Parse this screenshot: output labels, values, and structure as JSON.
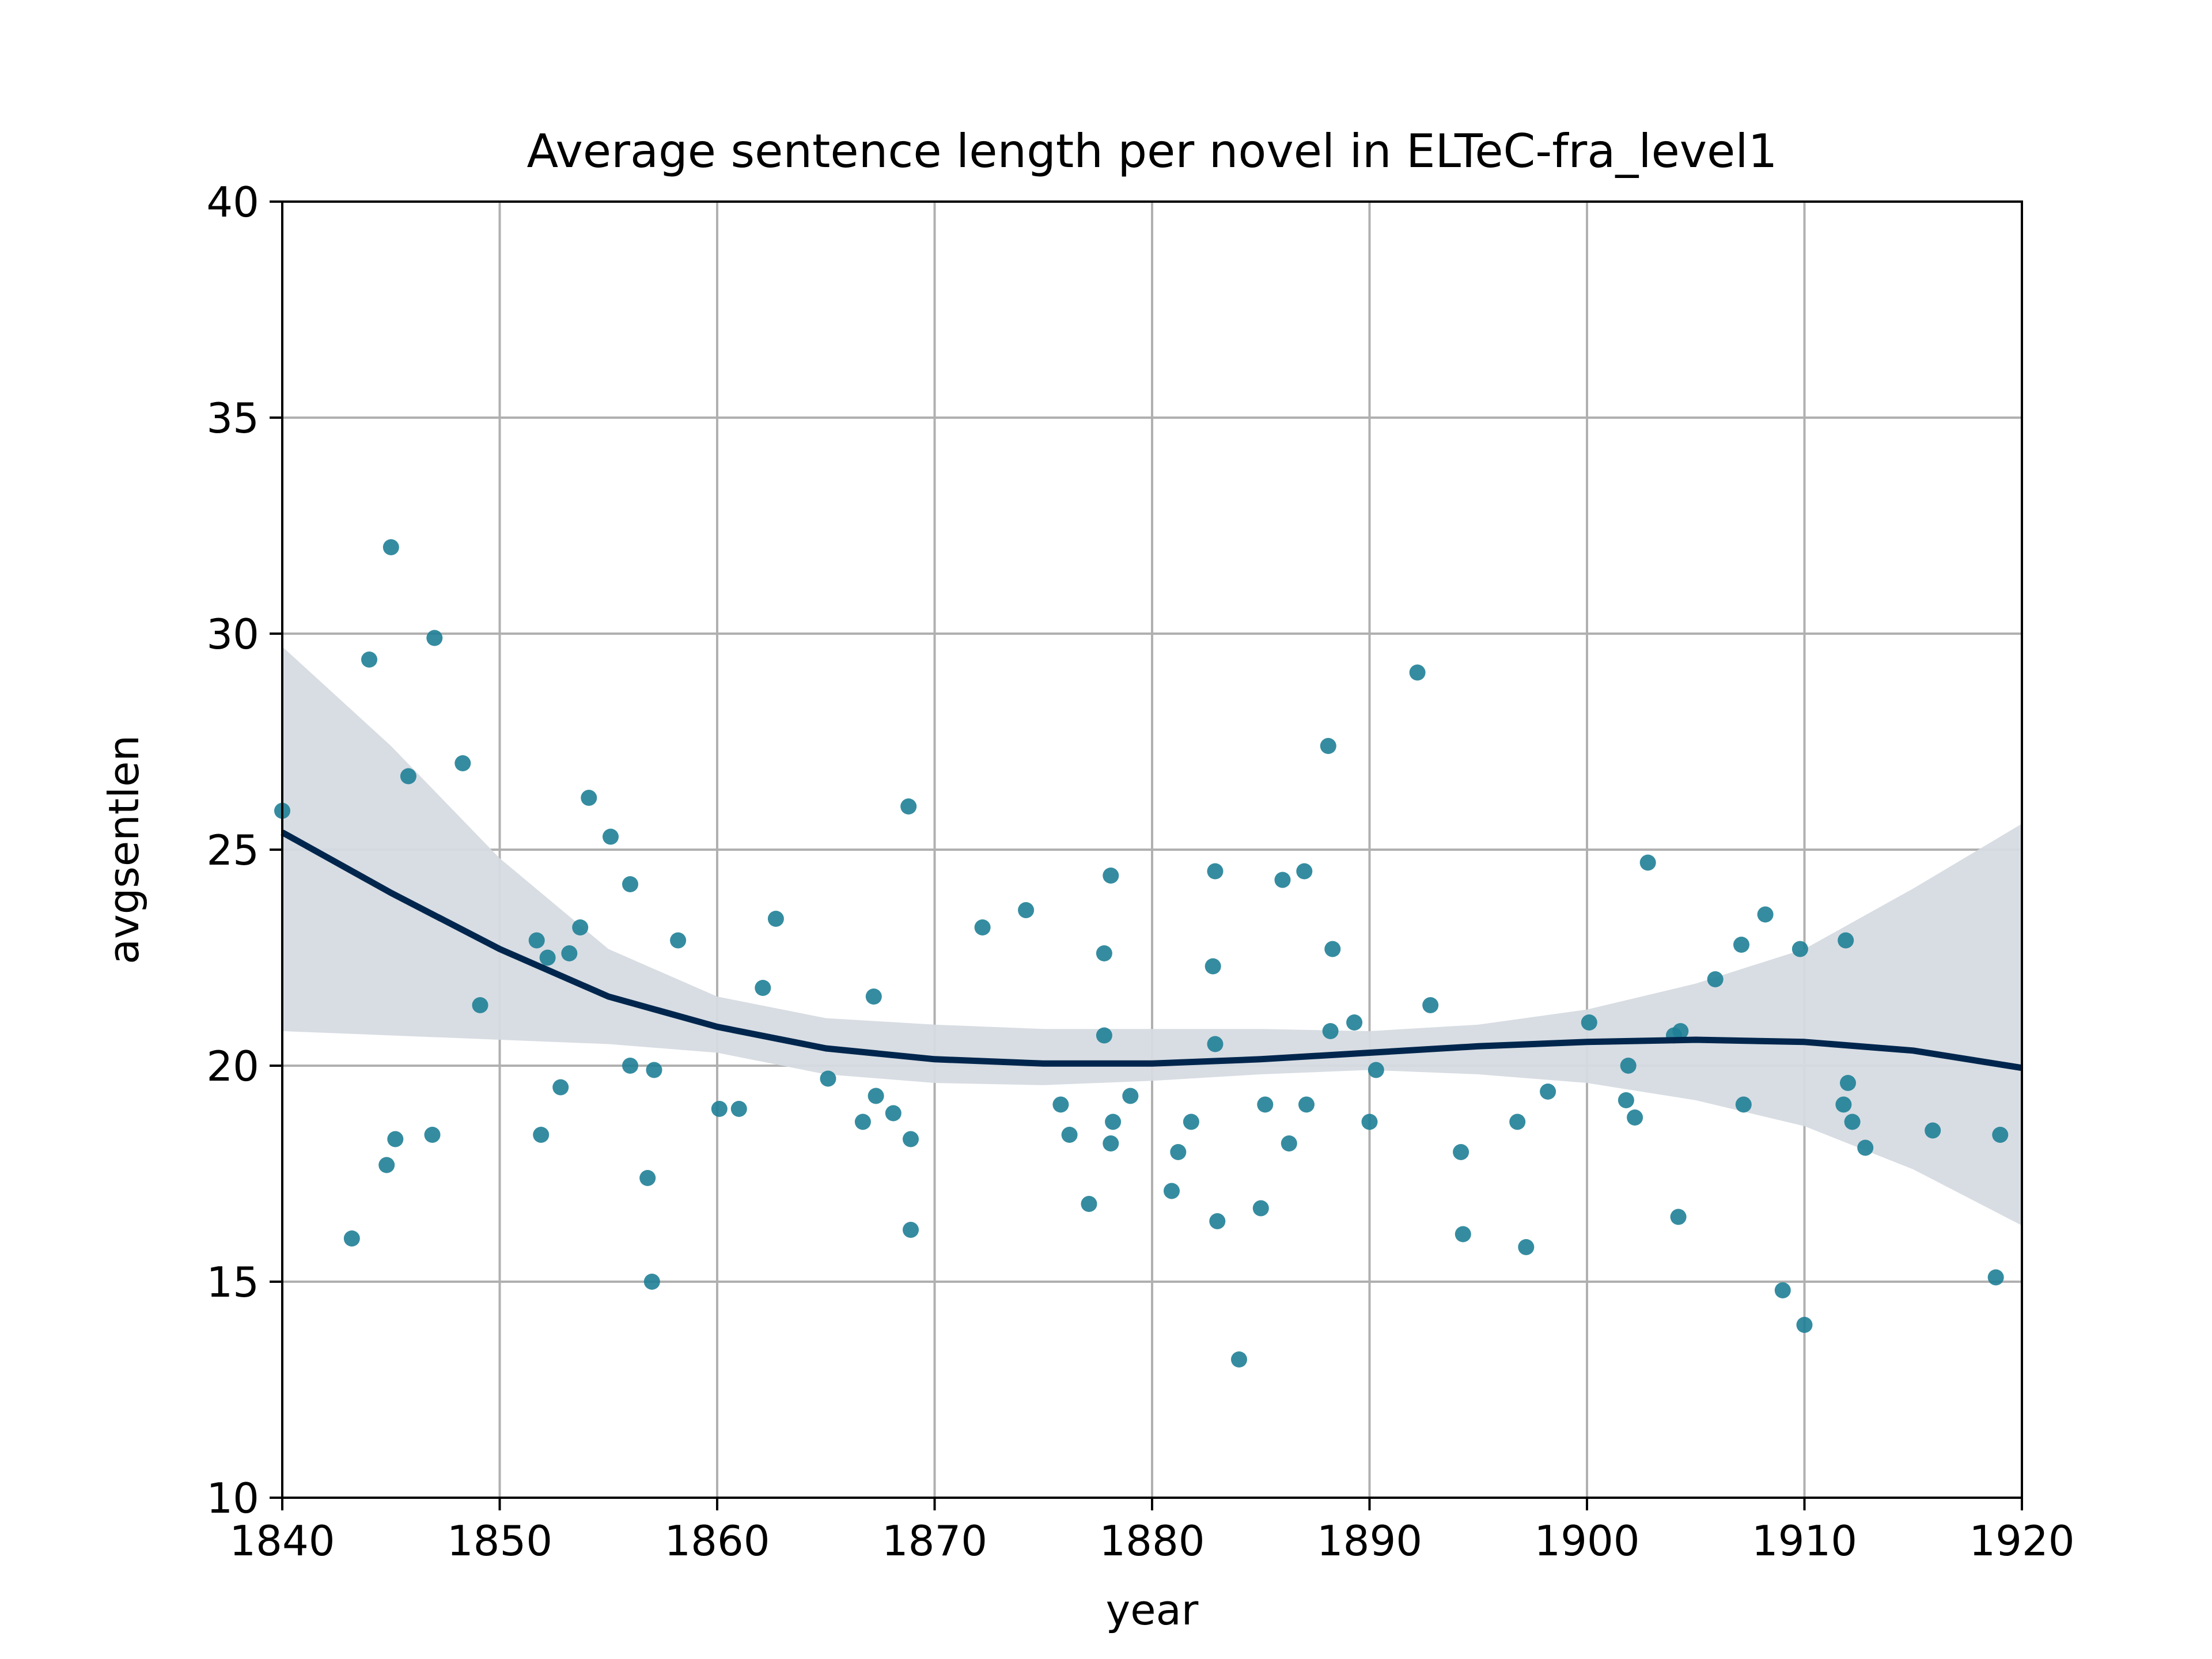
{
  "chart_data": {
    "type": "scatter",
    "title": "Average sentence length per novel in ELTeC-fra_level1",
    "xlabel": "year",
    "ylabel": "avgsentlen",
    "xlim": [
      1840,
      1920
    ],
    "ylim": [
      10,
      40
    ],
    "xticks": [
      "1840",
      "1850",
      "1860",
      "1870",
      "1880",
      "1890",
      "1900",
      "1910",
      "1920"
    ],
    "yticks": [
      "10",
      "15",
      "20",
      "25",
      "30",
      "35",
      "40"
    ],
    "grid": true,
    "legend": "none",
    "colors": {
      "points": "#1f7f96",
      "trend": "#00264d",
      "band": "#d6dbe2",
      "grid": "#b0b0b0"
    },
    "points": [
      [
        1840,
        25.9
      ],
      [
        1843.2,
        16.0
      ],
      [
        1844.0,
        29.4
      ],
      [
        1844.8,
        17.7
      ],
      [
        1845.0,
        32.0
      ],
      [
        1845.2,
        18.3
      ],
      [
        1845.8,
        26.7
      ],
      [
        1846.9,
        18.4
      ],
      [
        1847.0,
        29.9
      ],
      [
        1848.3,
        27.0
      ],
      [
        1849.1,
        21.4
      ],
      [
        1851.7,
        22.9
      ],
      [
        1851.9,
        18.4
      ],
      [
        1852.2,
        22.5
      ],
      [
        1852.8,
        19.5
      ],
      [
        1853.2,
        22.6
      ],
      [
        1853.7,
        23.2
      ],
      [
        1854.1,
        26.2
      ],
      [
        1855.1,
        25.3
      ],
      [
        1856.0,
        24.2
      ],
      [
        1856.0,
        20.0
      ],
      [
        1856.8,
        17.4
      ],
      [
        1857.0,
        15.0
      ],
      [
        1857.1,
        19.9
      ],
      [
        1858.2,
        22.9
      ],
      [
        1860.1,
        19.0
      ],
      [
        1861.0,
        19.0
      ],
      [
        1862.1,
        21.8
      ],
      [
        1862.7,
        23.4
      ],
      [
        1865.1,
        19.7
      ],
      [
        1866.7,
        18.7
      ],
      [
        1867.2,
        21.6
      ],
      [
        1867.3,
        19.3
      ],
      [
        1868.1,
        18.9
      ],
      [
        1868.8,
        26.0
      ],
      [
        1868.9,
        16.2
      ],
      [
        1868.9,
        18.3
      ],
      [
        1872.2,
        23.2
      ],
      [
        1874.2,
        23.6
      ],
      [
        1875.8,
        19.1
      ],
      [
        1876.2,
        18.4
      ],
      [
        1877.1,
        16.8
      ],
      [
        1877.8,
        22.6
      ],
      [
        1877.8,
        20.7
      ],
      [
        1878.1,
        24.4
      ],
      [
        1878.2,
        18.7
      ],
      [
        1878.1,
        18.2
      ],
      [
        1879.0,
        19.3
      ],
      [
        1880.9,
        17.1
      ],
      [
        1881.2,
        18.0
      ],
      [
        1881.8,
        18.7
      ],
      [
        1882.8,
        22.3
      ],
      [
        1882.9,
        24.5
      ],
      [
        1882.9,
        20.5
      ],
      [
        1883.0,
        16.4
      ],
      [
        1884.0,
        13.2
      ],
      [
        1885.0,
        16.7
      ],
      [
        1885.2,
        19.1
      ],
      [
        1886.0,
        24.3
      ],
      [
        1886.3,
        18.2
      ],
      [
        1887.0,
        24.5
      ],
      [
        1887.1,
        19.1
      ],
      [
        1888.1,
        27.4
      ],
      [
        1888.2,
        20.8
      ],
      [
        1888.3,
        22.7
      ],
      [
        1889.3,
        21.0
      ],
      [
        1890.0,
        18.7
      ],
      [
        1890.3,
        19.9
      ],
      [
        1892.2,
        29.1
      ],
      [
        1892.8,
        21.4
      ],
      [
        1894.2,
        18.0
      ],
      [
        1894.3,
        16.1
      ],
      [
        1896.8,
        18.7
      ],
      [
        1897.2,
        15.8
      ],
      [
        1898.2,
        19.4
      ],
      [
        1900.1,
        21.0
      ],
      [
        1901.8,
        19.2
      ],
      [
        1901.9,
        20.0
      ],
      [
        1902.2,
        18.8
      ],
      [
        1902.8,
        24.7
      ],
      [
        1904.0,
        20.7
      ],
      [
        1904.3,
        20.8
      ],
      [
        1904.2,
        16.5
      ],
      [
        1905.9,
        22.0
      ],
      [
        1907.1,
        22.8
      ],
      [
        1907.2,
        19.1
      ],
      [
        1908.2,
        23.5
      ],
      [
        1909.0,
        14.8
      ],
      [
        1909.8,
        22.7
      ],
      [
        1910.0,
        14.0
      ],
      [
        1911.9,
        22.9
      ],
      [
        1911.8,
        19.1
      ],
      [
        1912.0,
        19.6
      ],
      [
        1912.2,
        18.7
      ],
      [
        1912.8,
        18.1
      ],
      [
        1915.9,
        18.5
      ],
      [
        1918.8,
        15.1
      ],
      [
        1919.0,
        18.4
      ]
    ],
    "trend": {
      "x": [
        1840,
        1845,
        1850,
        1855,
        1860,
        1865,
        1870,
        1875,
        1880,
        1885,
        1890,
        1895,
        1900,
        1905,
        1910,
        1915,
        1920
      ],
      "y": [
        25.4,
        24.0,
        22.7,
        21.6,
        20.9,
        20.4,
        20.15,
        20.05,
        20.05,
        20.15,
        20.3,
        20.45,
        20.55,
        20.6,
        20.55,
        20.35,
        19.95
      ],
      "lower": [
        20.8,
        20.7,
        20.6,
        20.5,
        20.3,
        19.8,
        19.6,
        19.55,
        19.65,
        19.8,
        19.9,
        19.8,
        19.6,
        19.2,
        18.6,
        17.6,
        16.3
      ],
      "upper": [
        29.7,
        27.4,
        24.8,
        22.7,
        21.6,
        21.1,
        20.95,
        20.85,
        20.85,
        20.85,
        20.8,
        20.95,
        21.3,
        21.9,
        22.7,
        24.1,
        25.6
      ]
    }
  }
}
